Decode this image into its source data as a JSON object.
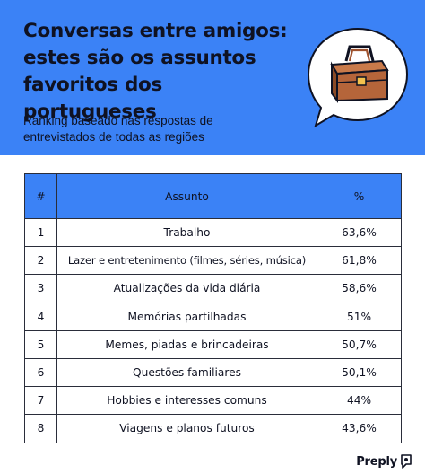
{
  "header": {
    "title": "Conversas entre amigos: estes são os assuntos favoritos dos portugueses",
    "subtitle": "Ranking baseado nas respostas de entrevistados de todas as regiões",
    "accent_color": "#3b82f6",
    "illustration_icon": "briefcase-icon"
  },
  "table": {
    "columns": [
      "#",
      "Assunto",
      "%"
    ],
    "rows": [
      {
        "rank": "1",
        "topic": "Trabalho",
        "percent": "63,6%"
      },
      {
        "rank": "2",
        "topic": "Lazer e entretenimento (filmes, séries, música)",
        "percent": "61,8%"
      },
      {
        "rank": "3",
        "topic": "Atualizações da vida diária",
        "percent": "58,6%"
      },
      {
        "rank": "4",
        "topic": "Memórias partilhadas",
        "percent": "51%"
      },
      {
        "rank": "5",
        "topic": "Memes, piadas e brincadeiras",
        "percent": "50,7%"
      },
      {
        "rank": "6",
        "topic": "Questões familiares",
        "percent": "50,1%"
      },
      {
        "rank": "7",
        "topic": "Hobbies e interesses comuns",
        "percent": "44%"
      },
      {
        "rank": "8",
        "topic": "Viagens e planos futuros",
        "percent": "43,6%"
      }
    ]
  },
  "footer": {
    "brand": "Preply",
    "brand_icon": "preply-logo-icon"
  }
}
